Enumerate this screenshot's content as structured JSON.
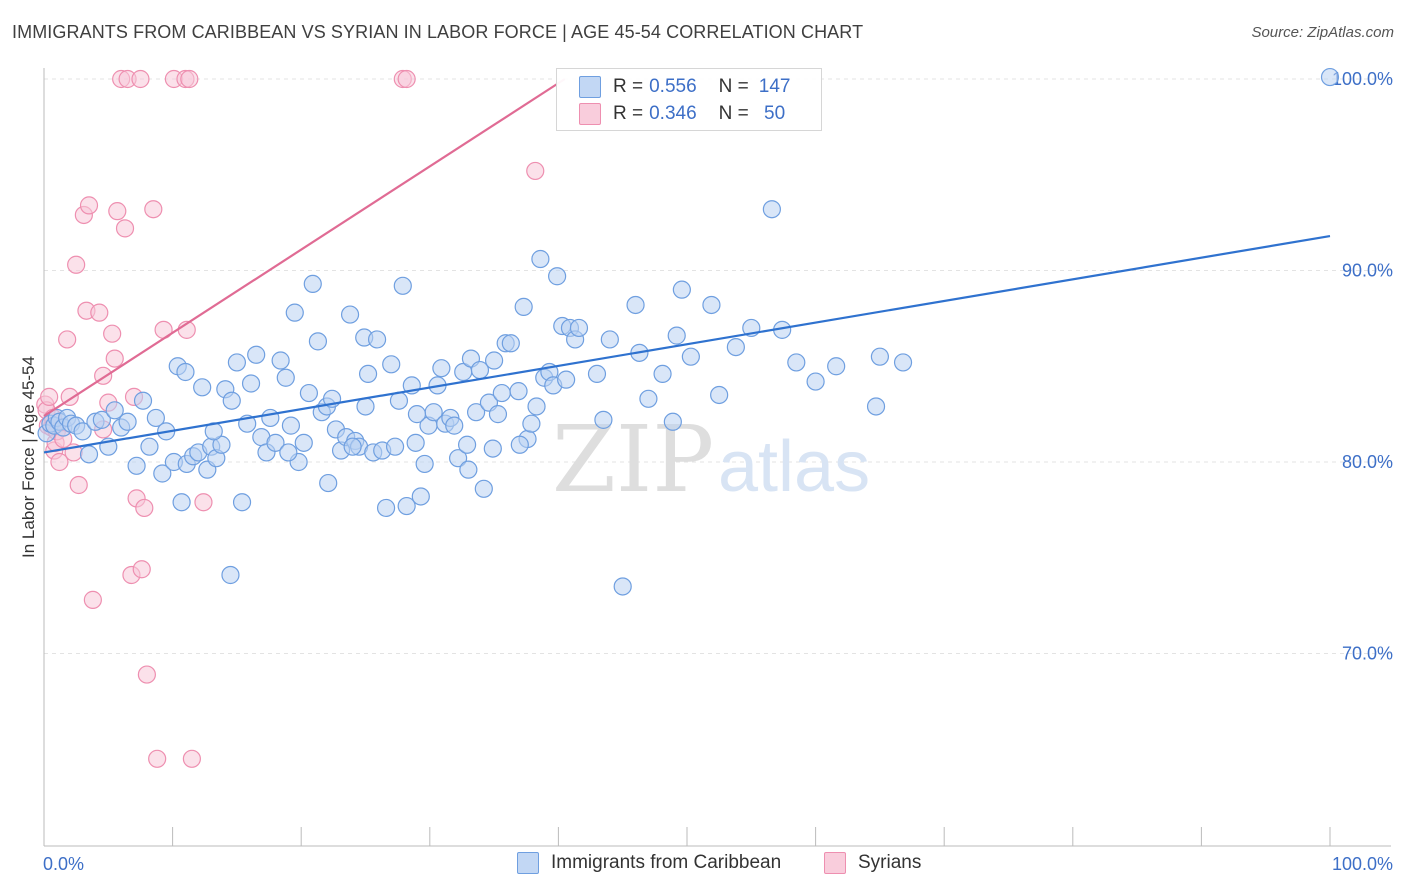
{
  "title": "IMMIGRANTS FROM CARIBBEAN VS SYRIAN IN LABOR FORCE | AGE 45-54 CORRELATION CHART",
  "source": "Source: ZipAtlas.com",
  "watermark": {
    "zip": "ZIP",
    "atlas": "atlas"
  },
  "colors": {
    "blue": "#6f9fe0",
    "blue_fill": "#b9d2f3",
    "blue_line": "#2f72cf",
    "pink": "#ee8fb0",
    "pink_fill": "#f8c9d9",
    "pink_line": "#e06b94",
    "axis_text": "#3d6fc7"
  },
  "legend": {
    "rows": [
      {
        "r_label": "R =",
        "r_value": "0.556",
        "n_label": "N =",
        "n_value": "147"
      },
      {
        "r_label": "R =",
        "r_value": "0.346",
        "n_label": "N =",
        "n_value": " 50"
      }
    ]
  },
  "bottom_legend": {
    "series1": "Immigrants from Caribbean",
    "series2": "Syrians"
  },
  "chart_data": {
    "type": "scatter",
    "title": "IMMIGRANTS FROM CARIBBEAN VS SYRIAN IN LABOR FORCE | AGE 45-54 CORRELATION CHART",
    "xlabel": "",
    "ylabel": "In Labor Force | Age 45-54",
    "xlim": [
      0,
      100
    ],
    "ylim": [
      60.5,
      101.5
    ],
    "x_tick_labels": [
      "0.0%",
      "100.0%"
    ],
    "y_ticks": [
      70,
      80,
      90,
      100
    ],
    "y_tick_labels": [
      "70.0%",
      "80.0%",
      "90.0%",
      "100.0%"
    ],
    "grid": true,
    "series": [
      {
        "name": "Immigrants from Caribbean",
        "color": "#6f9fe0",
        "r": 0.556,
        "n": 147,
        "trend": {
          "x": [
            0,
            100
          ],
          "y": [
            80.5,
            91.8
          ]
        },
        "points": [
          [
            0.2,
            81.5
          ],
          [
            0.5,
            82.0
          ],
          [
            0.8,
            81.9
          ],
          [
            1.0,
            82.3
          ],
          [
            1.2,
            82.1
          ],
          [
            1.5,
            81.8
          ],
          [
            1.8,
            82.3
          ],
          [
            2.1,
            82.0
          ],
          [
            2.5,
            81.9
          ],
          [
            3.0,
            81.6
          ],
          [
            3.5,
            80.4
          ],
          [
            4.0,
            82.1
          ],
          [
            4.5,
            82.2
          ],
          [
            5.0,
            80.8
          ],
          [
            5.5,
            82.7
          ],
          [
            6.0,
            81.8
          ],
          [
            6.5,
            82.1
          ],
          [
            7.2,
            79.8
          ],
          [
            7.7,
            83.2
          ],
          [
            8.2,
            80.8
          ],
          [
            8.7,
            82.3
          ],
          [
            9.2,
            79.4
          ],
          [
            9.5,
            81.6
          ],
          [
            10.1,
            80.0
          ],
          [
            10.4,
            85.0
          ],
          [
            10.7,
            77.9
          ],
          [
            11.1,
            79.9
          ],
          [
            11.6,
            80.3
          ],
          [
            12.0,
            80.5
          ],
          [
            12.3,
            83.9
          ],
          [
            12.7,
            79.6
          ],
          [
            13.0,
            80.8
          ],
          [
            13.4,
            80.2
          ],
          [
            13.8,
            80.9
          ],
          [
            14.1,
            83.8
          ],
          [
            14.6,
            83.2
          ],
          [
            15.0,
            85.2
          ],
          [
            15.4,
            77.9
          ],
          [
            15.8,
            82.0
          ],
          [
            16.1,
            84.1
          ],
          [
            16.5,
            85.6
          ],
          [
            16.9,
            81.3
          ],
          [
            17.3,
            80.5
          ],
          [
            17.6,
            82.3
          ],
          [
            18.0,
            81.0
          ],
          [
            18.4,
            85.3
          ],
          [
            18.8,
            84.4
          ],
          [
            19.2,
            81.9
          ],
          [
            19.5,
            87.8
          ],
          [
            19.8,
            80.0
          ],
          [
            20.2,
            81.0
          ],
          [
            20.6,
            83.6
          ],
          [
            20.9,
            89.3
          ],
          [
            21.3,
            86.3
          ],
          [
            21.6,
            82.6
          ],
          [
            22.0,
            82.9
          ],
          [
            22.4,
            83.3
          ],
          [
            22.7,
            81.7
          ],
          [
            23.1,
            80.6
          ],
          [
            23.5,
            81.3
          ],
          [
            23.8,
            87.7
          ],
          [
            24.2,
            81.1
          ],
          [
            24.5,
            80.8
          ],
          [
            24.9,
            86.5
          ],
          [
            25.2,
            84.6
          ],
          [
            25.6,
            80.5
          ],
          [
            25.9,
            86.4
          ],
          [
            26.3,
            80.6
          ],
          [
            26.6,
            77.6
          ],
          [
            27.0,
            85.1
          ],
          [
            27.3,
            80.8
          ],
          [
            27.6,
            83.2
          ],
          [
            27.9,
            89.2
          ],
          [
            28.2,
            77.7
          ],
          [
            28.6,
            84.0
          ],
          [
            28.9,
            81.0
          ],
          [
            29.3,
            78.2
          ],
          [
            29.6,
            79.9
          ],
          [
            29.9,
            81.9
          ],
          [
            30.3,
            82.6
          ],
          [
            30.6,
            84.0
          ],
          [
            30.9,
            84.9
          ],
          [
            31.2,
            82.0
          ],
          [
            31.6,
            82.3
          ],
          [
            31.9,
            81.9
          ],
          [
            32.2,
            80.2
          ],
          [
            32.6,
            84.7
          ],
          [
            32.9,
            80.9
          ],
          [
            33.2,
            85.4
          ],
          [
            33.6,
            82.6
          ],
          [
            33.9,
            84.8
          ],
          [
            34.2,
            78.6
          ],
          [
            34.6,
            83.1
          ],
          [
            34.9,
            80.7
          ],
          [
            35.3,
            82.5
          ],
          [
            35.6,
            83.6
          ],
          [
            35.9,
            86.2
          ],
          [
            36.3,
            86.2
          ],
          [
            36.9,
            83.7
          ],
          [
            37.3,
            88.1
          ],
          [
            37.6,
            81.2
          ],
          [
            37.9,
            82.0
          ],
          [
            38.3,
            82.9
          ],
          [
            38.6,
            90.6
          ],
          [
            38.9,
            84.4
          ],
          [
            39.3,
            84.7
          ],
          [
            39.6,
            84.0
          ],
          [
            39.9,
            89.7
          ],
          [
            40.3,
            87.1
          ],
          [
            40.6,
            84.3
          ],
          [
            40.9,
            87.0
          ],
          [
            41.3,
            86.4
          ],
          [
            41.6,
            87.0
          ],
          [
            43.0,
            84.6
          ],
          [
            44.0,
            86.4
          ],
          [
            45.0,
            73.5
          ],
          [
            46.0,
            88.2
          ],
          [
            46.3,
            85.7
          ],
          [
            48.1,
            84.6
          ],
          [
            48.9,
            82.1
          ],
          [
            49.2,
            86.6
          ],
          [
            49.6,
            89.0
          ],
          [
            50.3,
            85.5
          ],
          [
            51.9,
            88.2
          ],
          [
            53.8,
            86.0
          ],
          [
            55.0,
            87.0
          ],
          [
            56.6,
            93.2
          ],
          [
            57.4,
            86.9
          ],
          [
            58.5,
            85.2
          ],
          [
            61.6,
            85.0
          ],
          [
            64.7,
            82.9
          ],
          [
            65.0,
            85.5
          ],
          [
            66.8,
            85.2
          ],
          [
            100.0,
            100.1
          ],
          [
            13.2,
            81.6
          ],
          [
            19.0,
            80.5
          ],
          [
            22.1,
            78.9
          ],
          [
            25.0,
            82.9
          ],
          [
            29.0,
            82.5
          ],
          [
            33.0,
            79.6
          ],
          [
            35.0,
            85.3
          ],
          [
            37.0,
            80.9
          ],
          [
            43.5,
            82.2
          ],
          [
            47.0,
            83.3
          ],
          [
            52.5,
            83.5
          ],
          [
            60.0,
            84.2
          ],
          [
            11.0,
            84.7
          ],
          [
            24.0,
            80.8
          ],
          [
            14.5,
            74.1
          ]
        ]
      },
      {
        "name": "Syrians",
        "color": "#ee8fb0",
        "r": 0.346,
        "n": 50,
        "trend": {
          "x": [
            0,
            40.5
          ],
          "y": [
            82.4,
            100.0
          ]
        },
        "points": [
          [
            0.1,
            83.0
          ],
          [
            0.2,
            82.7
          ],
          [
            0.3,
            81.9
          ],
          [
            0.4,
            83.4
          ],
          [
            0.5,
            82.0
          ],
          [
            0.6,
            81.8
          ],
          [
            0.7,
            82.3
          ],
          [
            0.8,
            80.6
          ],
          [
            0.9,
            81.0
          ],
          [
            1.0,
            81.6
          ],
          [
            1.2,
            80.0
          ],
          [
            1.5,
            81.2
          ],
          [
            1.8,
            86.4
          ],
          [
            2.0,
            83.4
          ],
          [
            2.3,
            80.5
          ],
          [
            2.5,
            90.3
          ],
          [
            2.7,
            78.8
          ],
          [
            3.1,
            92.9
          ],
          [
            3.3,
            87.9
          ],
          [
            3.5,
            93.4
          ],
          [
            3.8,
            72.8
          ],
          [
            4.3,
            87.8
          ],
          [
            4.6,
            84.5
          ],
          [
            4.6,
            81.7
          ],
          [
            5.0,
            83.1
          ],
          [
            5.3,
            86.7
          ],
          [
            5.5,
            85.4
          ],
          [
            5.7,
            93.1
          ],
          [
            6.0,
            100.0
          ],
          [
            6.3,
            92.2
          ],
          [
            6.5,
            100.0
          ],
          [
            6.8,
            74.1
          ],
          [
            7.0,
            83.4
          ],
          [
            7.2,
            78.1
          ],
          [
            7.5,
            100.0
          ],
          [
            7.6,
            74.4
          ],
          [
            7.8,
            77.6
          ],
          [
            8.0,
            68.9
          ],
          [
            8.5,
            93.2
          ],
          [
            8.8,
            64.5
          ],
          [
            9.3,
            86.9
          ],
          [
            10.1,
            100.0
          ],
          [
            11.0,
            100.0
          ],
          [
            11.1,
            86.9
          ],
          [
            11.3,
            100.0
          ],
          [
            11.5,
            64.5
          ],
          [
            12.4,
            77.9
          ],
          [
            27.9,
            100.0
          ],
          [
            28.2,
            100.0
          ],
          [
            38.2,
            95.2
          ]
        ]
      }
    ]
  }
}
